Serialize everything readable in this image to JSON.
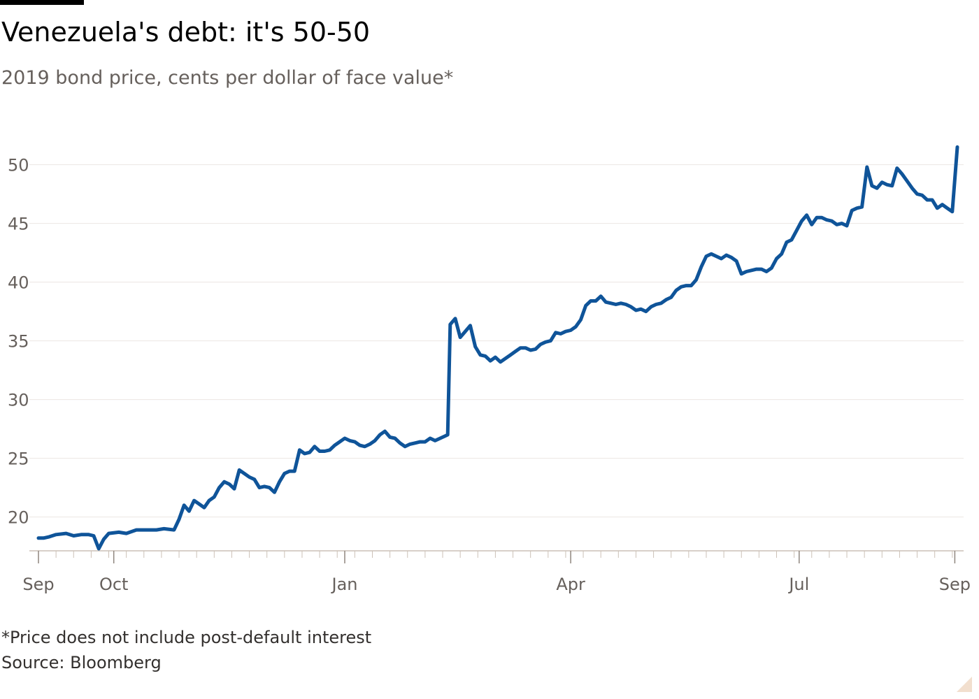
{
  "header": {
    "title": "Venezuela's debt: it's 50-50",
    "subtitle": "2019 bond price, cents per dollar of face value*"
  },
  "footer": {
    "footnote": "*Price does not include post-default interest",
    "source": "Source: Bloomberg"
  },
  "chart_data": {
    "type": "line",
    "ylim": [
      17,
      52
    ],
    "yticks": [
      20,
      25,
      30,
      35,
      40,
      45,
      50
    ],
    "xlim": [
      "2017-09-01",
      "2018-09-02"
    ],
    "xticks": [
      {
        "label": "Sep",
        "date": "2017-09-01"
      },
      {
        "label": "Oct",
        "date": "2017-10-01"
      },
      {
        "label": "Jan",
        "date": "2018-01-01"
      },
      {
        "label": "Apr",
        "date": "2018-04-01"
      },
      {
        "label": "Jul",
        "date": "2018-07-01"
      },
      {
        "label": "Sep",
        "date": "2018-09-01"
      }
    ],
    "grid": true,
    "line_color": "#0f5499",
    "series": [
      {
        "points": [
          [
            "2017-09-01",
            18.2
          ],
          [
            "2017-09-03",
            18.2
          ],
          [
            "2017-09-05",
            18.3
          ],
          [
            "2017-09-08",
            18.5
          ],
          [
            "2017-09-12",
            18.6
          ],
          [
            "2017-09-15",
            18.4
          ],
          [
            "2017-09-18",
            18.5
          ],
          [
            "2017-09-21",
            18.5
          ],
          [
            "2017-09-23",
            18.4
          ],
          [
            "2017-09-25",
            17.3
          ],
          [
            "2017-09-27",
            18.1
          ],
          [
            "2017-09-29",
            18.6
          ],
          [
            "2017-10-03",
            18.7
          ],
          [
            "2017-10-06",
            18.6
          ],
          [
            "2017-10-10",
            18.9
          ],
          [
            "2017-10-14",
            18.9
          ],
          [
            "2017-10-18",
            18.9
          ],
          [
            "2017-10-21",
            19.0
          ],
          [
            "2017-10-25",
            18.9
          ],
          [
            "2017-10-27",
            19.8
          ],
          [
            "2017-10-29",
            21.0
          ],
          [
            "2017-10-31",
            20.5
          ],
          [
            "2017-11-02",
            21.4
          ],
          [
            "2017-11-04",
            21.1
          ],
          [
            "2017-11-06",
            20.8
          ],
          [
            "2017-11-08",
            21.4
          ],
          [
            "2017-11-10",
            21.7
          ],
          [
            "2017-11-12",
            22.5
          ],
          [
            "2017-11-14",
            23.0
          ],
          [
            "2017-11-16",
            22.8
          ],
          [
            "2017-11-18",
            22.4
          ],
          [
            "2017-11-20",
            24.0
          ],
          [
            "2017-11-22",
            23.7
          ],
          [
            "2017-11-24",
            23.4
          ],
          [
            "2017-11-26",
            23.2
          ],
          [
            "2017-11-28",
            22.5
          ],
          [
            "2017-11-30",
            22.6
          ],
          [
            "2017-12-02",
            22.5
          ],
          [
            "2017-12-04",
            22.1
          ],
          [
            "2017-12-06",
            23.0
          ],
          [
            "2017-12-08",
            23.7
          ],
          [
            "2017-12-10",
            23.9
          ],
          [
            "2017-12-12",
            23.9
          ],
          [
            "2017-12-14",
            25.7
          ],
          [
            "2017-12-16",
            25.4
          ],
          [
            "2017-12-18",
            25.5
          ],
          [
            "2017-12-20",
            26.0
          ],
          [
            "2017-12-22",
            25.6
          ],
          [
            "2017-12-24",
            25.6
          ],
          [
            "2017-12-26",
            25.7
          ],
          [
            "2017-12-28",
            26.1
          ],
          [
            "2017-12-30",
            26.4
          ],
          [
            "2018-01-01",
            26.7
          ],
          [
            "2018-01-03",
            26.5
          ],
          [
            "2018-01-05",
            26.4
          ],
          [
            "2018-01-07",
            26.1
          ],
          [
            "2018-01-09",
            26.0
          ],
          [
            "2018-01-11",
            26.2
          ],
          [
            "2018-01-13",
            26.5
          ],
          [
            "2018-01-15",
            27.0
          ],
          [
            "2018-01-17",
            27.3
          ],
          [
            "2018-01-19",
            26.8
          ],
          [
            "2018-01-21",
            26.7
          ],
          [
            "2018-01-23",
            26.3
          ],
          [
            "2018-01-25",
            26.0
          ],
          [
            "2018-01-27",
            26.2
          ],
          [
            "2018-01-29",
            26.3
          ],
          [
            "2018-01-31",
            26.4
          ],
          [
            "2018-02-02",
            26.4
          ],
          [
            "2018-02-04",
            26.7
          ],
          [
            "2018-02-06",
            26.5
          ],
          [
            "2018-02-09",
            26.8
          ],
          [
            "2018-02-11",
            27.0
          ],
          [
            "2018-02-12",
            36.4
          ],
          [
            "2018-02-14",
            36.9
          ],
          [
            "2018-02-16",
            35.3
          ],
          [
            "2018-02-18",
            35.8
          ],
          [
            "2018-02-20",
            36.3
          ],
          [
            "2018-02-22",
            34.5
          ],
          [
            "2018-02-24",
            33.8
          ],
          [
            "2018-02-26",
            33.7
          ],
          [
            "2018-02-28",
            33.3
          ],
          [
            "2018-03-02",
            33.6
          ],
          [
            "2018-03-04",
            33.2
          ],
          [
            "2018-03-06",
            33.5
          ],
          [
            "2018-03-08",
            33.8
          ],
          [
            "2018-03-10",
            34.1
          ],
          [
            "2018-03-12",
            34.4
          ],
          [
            "2018-03-14",
            34.4
          ],
          [
            "2018-03-16",
            34.2
          ],
          [
            "2018-03-18",
            34.3
          ],
          [
            "2018-03-20",
            34.7
          ],
          [
            "2018-03-22",
            34.9
          ],
          [
            "2018-03-24",
            35.0
          ],
          [
            "2018-03-26",
            35.7
          ],
          [
            "2018-03-28",
            35.6
          ],
          [
            "2018-03-30",
            35.8
          ],
          [
            "2018-04-01",
            35.9
          ],
          [
            "2018-04-03",
            36.2
          ],
          [
            "2018-04-05",
            36.8
          ],
          [
            "2018-04-07",
            38.0
          ],
          [
            "2018-04-09",
            38.4
          ],
          [
            "2018-04-11",
            38.4
          ],
          [
            "2018-04-13",
            38.8
          ],
          [
            "2018-04-15",
            38.3
          ],
          [
            "2018-04-17",
            38.2
          ],
          [
            "2018-04-19",
            38.1
          ],
          [
            "2018-04-21",
            38.2
          ],
          [
            "2018-04-23",
            38.1
          ],
          [
            "2018-04-25",
            37.9
          ],
          [
            "2018-04-27",
            37.6
          ],
          [
            "2018-04-29",
            37.7
          ],
          [
            "2018-05-01",
            37.5
          ],
          [
            "2018-05-03",
            37.9
          ],
          [
            "2018-05-05",
            38.1
          ],
          [
            "2018-05-07",
            38.2
          ],
          [
            "2018-05-09",
            38.5
          ],
          [
            "2018-05-11",
            38.7
          ],
          [
            "2018-05-13",
            39.3
          ],
          [
            "2018-05-15",
            39.6
          ],
          [
            "2018-05-17",
            39.7
          ],
          [
            "2018-05-19",
            39.7
          ],
          [
            "2018-05-21",
            40.2
          ],
          [
            "2018-05-23",
            41.3
          ],
          [
            "2018-05-25",
            42.2
          ],
          [
            "2018-05-27",
            42.4
          ],
          [
            "2018-05-29",
            42.2
          ],
          [
            "2018-05-31",
            42.0
          ],
          [
            "2018-06-02",
            42.3
          ],
          [
            "2018-06-04",
            42.1
          ],
          [
            "2018-06-06",
            41.8
          ],
          [
            "2018-06-08",
            40.7
          ],
          [
            "2018-06-10",
            40.9
          ],
          [
            "2018-06-12",
            41.0
          ],
          [
            "2018-06-14",
            41.1
          ],
          [
            "2018-06-16",
            41.1
          ],
          [
            "2018-06-18",
            40.9
          ],
          [
            "2018-06-20",
            41.2
          ],
          [
            "2018-06-22",
            42.0
          ],
          [
            "2018-06-24",
            42.4
          ],
          [
            "2018-06-26",
            43.4
          ],
          [
            "2018-06-28",
            43.6
          ],
          [
            "2018-06-30",
            44.4
          ],
          [
            "2018-07-02",
            45.2
          ],
          [
            "2018-07-04",
            45.7
          ],
          [
            "2018-07-06",
            44.9
          ],
          [
            "2018-07-08",
            45.5
          ],
          [
            "2018-07-10",
            45.5
          ],
          [
            "2018-07-12",
            45.3
          ],
          [
            "2018-07-14",
            45.2
          ],
          [
            "2018-07-16",
            44.9
          ],
          [
            "2018-07-18",
            45.0
          ],
          [
            "2018-07-20",
            44.8
          ],
          [
            "2018-07-22",
            46.1
          ],
          [
            "2018-07-24",
            46.3
          ],
          [
            "2018-07-26",
            46.4
          ],
          [
            "2018-07-28",
            49.8
          ],
          [
            "2018-07-30",
            48.2
          ],
          [
            "2018-08-01",
            48.0
          ],
          [
            "2018-08-03",
            48.5
          ],
          [
            "2018-08-05",
            48.3
          ],
          [
            "2018-08-07",
            48.2
          ],
          [
            "2018-08-09",
            49.7
          ],
          [
            "2018-08-11",
            49.2
          ],
          [
            "2018-08-13",
            48.6
          ],
          [
            "2018-08-15",
            48.0
          ],
          [
            "2018-08-17",
            47.5
          ],
          [
            "2018-08-19",
            47.4
          ],
          [
            "2018-08-21",
            47.0
          ],
          [
            "2018-08-23",
            47.0
          ],
          [
            "2018-08-25",
            46.3
          ],
          [
            "2018-08-27",
            46.6
          ],
          [
            "2018-08-29",
            46.3
          ],
          [
            "2018-08-31",
            46.0
          ],
          [
            "2018-09-02",
            51.5
          ]
        ]
      }
    ]
  }
}
